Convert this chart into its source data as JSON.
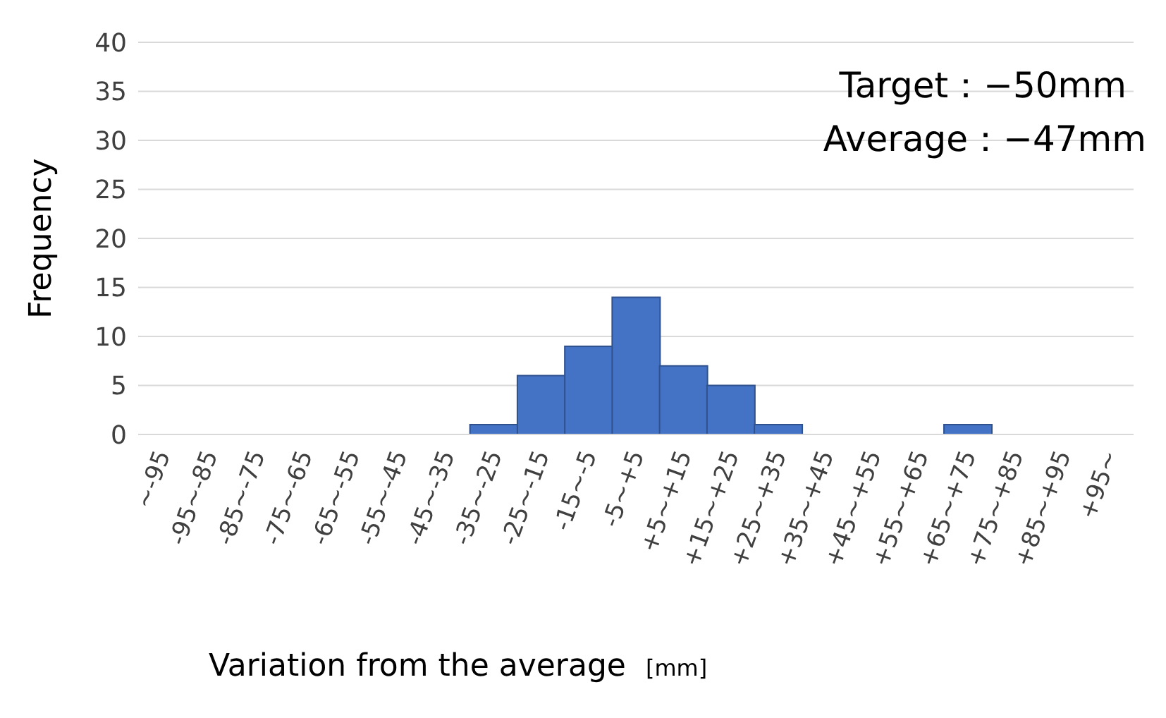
{
  "chart_data": {
    "type": "bar",
    "xlabel": "Variation from the average",
    "ylabel": "Frequency",
    "categories": [
      "~-95",
      "-95~-85",
      "-85~-75",
      "-75~-65",
      "-65~-55",
      "-55~-45",
      "-45~-35",
      "-35~-25",
      "-25~-15",
      "-15~-5",
      "-5~+5",
      "+5~+15",
      "+15~+25",
      "+25~+35",
      "+35~+45",
      "+45~+55",
      "+55~+65",
      "+65~+75",
      "+75~+85",
      "+85~+95",
      "+95~"
    ],
    "values": [
      0,
      0,
      0,
      0,
      0,
      0,
      0,
      1,
      6,
      9,
      14,
      7,
      5,
      1,
      0,
      0,
      0,
      1,
      0,
      0,
      0
    ],
    "color": "#4472c4",
    "ylim": [
      0,
      40
    ],
    "yticks": [
      0,
      5,
      10,
      15,
      20,
      25,
      30,
      35,
      40
    ],
    "grid": "y",
    "annotations": [
      "Target：−50mm",
      "Average：−47mm",
      "[mm]"
    ]
  }
}
